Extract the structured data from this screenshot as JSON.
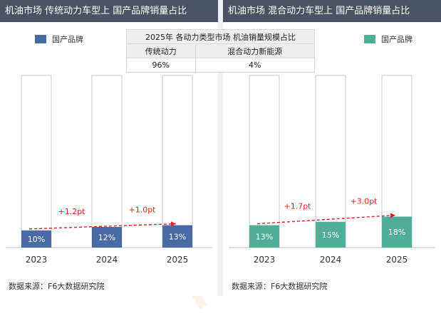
{
  "panels": [
    {
      "title": "机油市场 传统动力车型上 国产品牌销量占比",
      "legend": "国产品牌",
      "source": "数据来源：F6大数据研究院"
    },
    {
      "title": "机油市场 混合动力车型上 国产品牌销量占比",
      "legend": "国产品牌",
      "source": "数据来源：F6大数据研究院"
    }
  ],
  "table": {
    "title": "2025年 各动力类型市场 机油销量规模占比",
    "headers": [
      "传统动力",
      "混合动力新能源"
    ],
    "values": [
      "96%",
      "4%"
    ]
  },
  "watermark": "F6大数据研究院",
  "chart_data": [
    {
      "type": "bar",
      "title": "机油市场 传统动力车型上 国产品牌销量占比",
      "categories": [
        "2023",
        "2024",
        "2025"
      ],
      "series": [
        {
          "name": "国产品牌",
          "values": [
            10,
            12,
            13
          ]
        }
      ],
      "data_labels": [
        "10%",
        "12%",
        "13%"
      ],
      "annotations": [
        "+1.2pt",
        "+1.0pt"
      ],
      "ylim": [
        0,
        100
      ],
      "color": "#4a6aa5",
      "trend_color": "#e02020"
    },
    {
      "type": "bar",
      "title": "机油市场 混合动力车型上 国产品牌销量占比",
      "categories": [
        "2023",
        "2024",
        "2025"
      ],
      "series": [
        {
          "name": "国产品牌",
          "values": [
            13,
            15,
            18
          ]
        }
      ],
      "data_labels": [
        "13%",
        "15%",
        "18%"
      ],
      "annotations": [
        "+1.7pt",
        "+3.0pt"
      ],
      "ylim": [
        0,
        100
      ],
      "color": "#4fae95",
      "trend_color": "#e02020"
    }
  ]
}
